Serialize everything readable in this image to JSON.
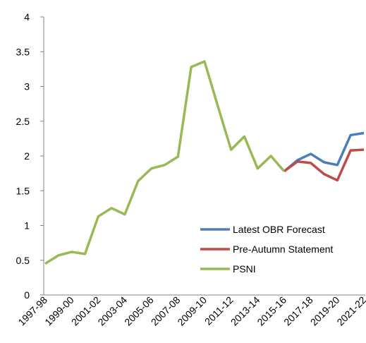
{
  "chart_data": {
    "type": "line",
    "categories": [
      "1997-98",
      null,
      "1999-00",
      null,
      "2001-02",
      null,
      "2003-04",
      null,
      "2005-06",
      null,
      "2007-08",
      null,
      "2009-10",
      null,
      "2011-12",
      null,
      "2013-14",
      null,
      "2015-16",
      null,
      "2017-18",
      null,
      "2019-20",
      null,
      "2021-22"
    ],
    "series": [
      {
        "name": "Latest OBR Forecast",
        "color": "#4a7ebb",
        "values": [
          null,
          null,
          null,
          null,
          null,
          null,
          null,
          null,
          null,
          null,
          null,
          null,
          null,
          null,
          null,
          null,
          null,
          null,
          1.78,
          1.94,
          2.03,
          1.91,
          1.87,
          2.3,
          2.33
        ]
      },
      {
        "name": "Pre-Autumn Statement",
        "color": "#be4b48",
        "values": [
          null,
          null,
          null,
          null,
          null,
          null,
          null,
          null,
          null,
          null,
          null,
          null,
          null,
          null,
          null,
          null,
          null,
          null,
          1.78,
          1.92,
          1.9,
          1.74,
          1.65,
          2.08,
          2.09
        ]
      },
      {
        "name": "PSNI",
        "color": "#98b954",
        "values": [
          0.45,
          0.57,
          0.62,
          0.59,
          1.13,
          1.25,
          1.16,
          1.64,
          1.82,
          1.87,
          1.99,
          3.28,
          3.36,
          2.72,
          2.09,
          2.28,
          1.82,
          2.0,
          1.78,
          null,
          null,
          null,
          null,
          null,
          null
        ]
      }
    ],
    "ylim": [
      0,
      4
    ],
    "yticks": [
      0,
      0.5,
      1,
      1.5,
      2,
      2.5,
      3,
      3.5,
      4
    ],
    "grid": false,
    "legend": "lower right"
  }
}
